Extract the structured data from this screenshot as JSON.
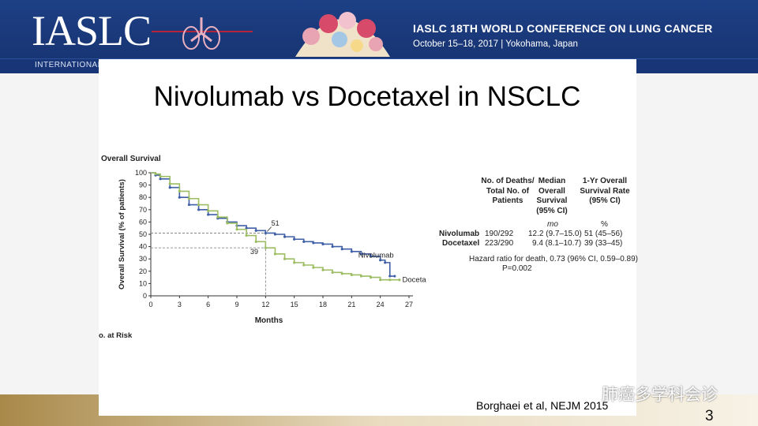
{
  "header": {
    "logo_text": "IASLC",
    "logo_subtitle": "INTERNATIONAL AS",
    "conference_title": "IASLC 18TH WORLD CONFERENCE ON LUNG CANCER",
    "conference_date": "October 15–18, 2017 | Yokohama, Japan",
    "brand_color": "#1d3f85"
  },
  "slide": {
    "title": "Nivolumab vs Docetaxel in NSCLC",
    "citation": "Borghaei et al, NEJM 2015",
    "page_number": "3",
    "watermark": "肺癌多学科会诊"
  },
  "chart_data": {
    "type": "line",
    "title": "Overall Survival",
    "xlabel": "Months",
    "ylabel": "Overall Survival (% of patients)",
    "xlim": [
      0,
      27
    ],
    "ylim": [
      0,
      100
    ],
    "x_ticks": [
      0,
      3,
      6,
      9,
      12,
      15,
      18,
      21,
      24,
      27
    ],
    "y_ticks": [
      0,
      10,
      20,
      30,
      40,
      50,
      60,
      70,
      80,
      90,
      100
    ],
    "risk_label": "o. at Risk",
    "series": [
      {
        "name": "Nivolumab",
        "color": "#3f5fa6",
        "x": [
          0,
          0.5,
          1,
          2,
          3,
          4,
          5,
          6,
          7,
          8,
          9,
          10,
          11,
          12,
          13,
          14,
          15,
          16,
          17,
          18,
          19,
          20,
          21,
          22,
          23,
          24,
          24.5,
          25,
          25.5
        ],
        "y": [
          100,
          98,
          95,
          88,
          80,
          74,
          70,
          66,
          63,
          60,
          57,
          55,
          53,
          51,
          50,
          48,
          46,
          44,
          43,
          42,
          40,
          38,
          36,
          34,
          32,
          29,
          27,
          16,
          16
        ]
      },
      {
        "name": "Docetaxel",
        "color": "#9cbd63",
        "x": [
          0,
          0.5,
          1,
          2,
          3,
          4,
          5,
          6,
          7,
          8,
          9,
          10,
          11,
          12,
          13,
          14,
          15,
          16,
          17,
          18,
          19,
          20,
          21,
          22,
          23,
          24,
          25,
          26
        ],
        "y": [
          100,
          99,
          97,
          91,
          85,
          79,
          74,
          69,
          64,
          59,
          54,
          49,
          44,
          39,
          34,
          30,
          27,
          25,
          23,
          21,
          19,
          18,
          17,
          16,
          15,
          13,
          13,
          13
        ]
      }
    ],
    "annotations": [
      {
        "text": "51",
        "x": 12,
        "y": 51
      },
      {
        "text": "39",
        "x": 12,
        "y": 39
      }
    ],
    "grid": false,
    "legend": "inline labels at line ends"
  },
  "table": {
    "headers": [
      "No. of Deaths/ Total No. of Patients",
      "Median Overall Survival (95% CI)",
      "1-Yr Overall Survival Rate (95% CI)"
    ],
    "units": [
      "",
      "mo",
      "%"
    ],
    "rows": [
      {
        "label": "Nivolumab",
        "deaths": "190/292",
        "median": "12.2 (9.7–15.0)",
        "rate": "51 (45–56)"
      },
      {
        "label": "Docetaxel",
        "deaths": "223/290",
        "median": "9.4 (8.1–10.7)",
        "rate": "39 (33–45)"
      }
    ],
    "hazard_ratio": "Hazard ratio for death, 0.73 (96% CI, 0.59–0.89)",
    "p_value": "P=0.002"
  }
}
